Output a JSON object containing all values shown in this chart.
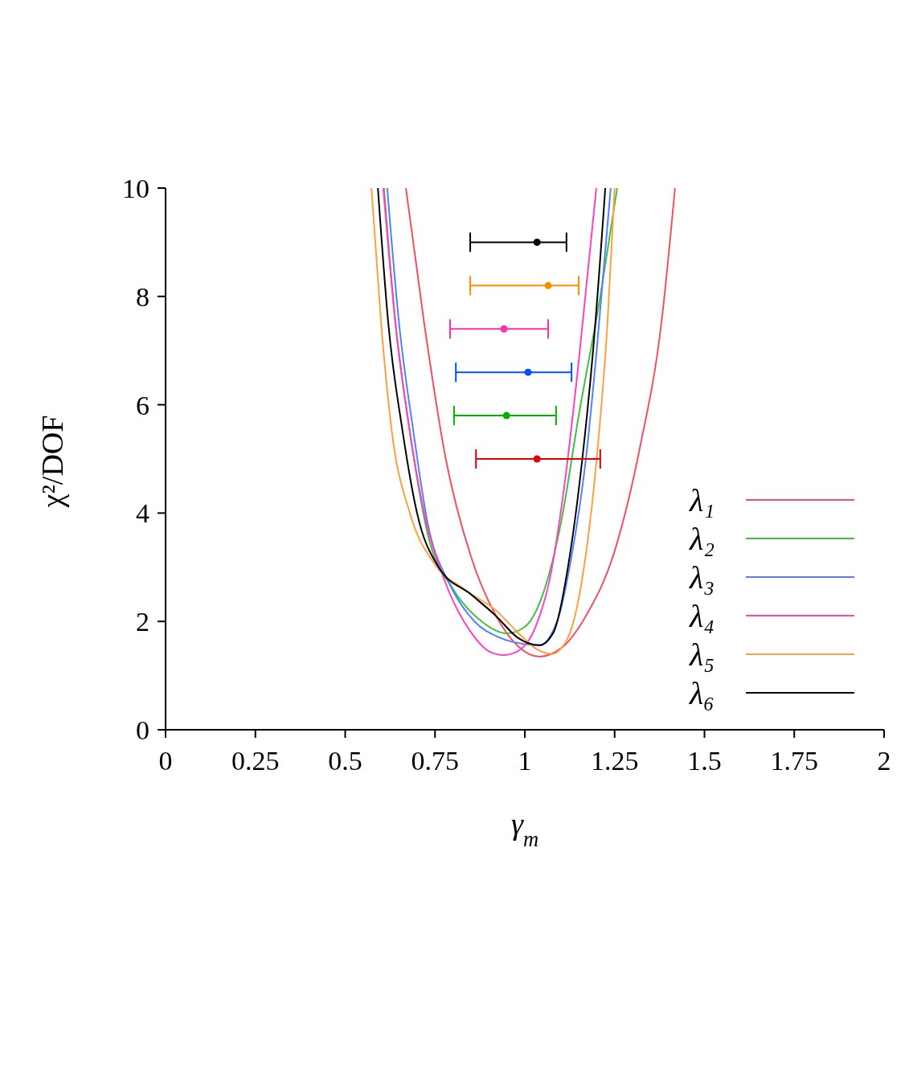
{
  "chart_data": {
    "type": "line",
    "xlabel": "γ$_{m}$",
    "ylabel": "χ²/DOF",
    "xlim": [
      0,
      2
    ],
    "xticks": [
      0,
      0.25,
      0.5,
      0.75,
      1,
      1.25,
      1.5,
      1.75,
      2
    ],
    "ylim": [
      0,
      10
    ],
    "yticks": [
      0,
      2,
      4,
      6,
      8,
      10
    ],
    "grid": false,
    "legend": "bottom right",
    "series": [
      {
        "name": "λ₁",
        "marker": "none",
        "color": "#f05060",
        "x": [
          0.669,
          0.72,
          0.78,
          0.85,
          0.92,
          0.98,
          1.04,
          1.1,
          1.17,
          1.25,
          1.32,
          1.38,
          1.418
        ],
        "values": [
          10,
          7.5,
          5,
          3.2,
          2.1,
          1.55,
          1.35,
          1.5,
          2.1,
          3.3,
          5.2,
          7.5,
          10
        ]
      },
      {
        "name": "λ₂",
        "marker": "none",
        "color": "#40c040",
        "x": [
          0.608,
          0.64,
          0.68,
          0.73,
          0.8,
          0.88,
          0.95,
          1.0,
          1.05,
          1.1,
          1.15,
          1.21,
          1.257
        ],
        "values": [
          10,
          7.5,
          5.5,
          3.6,
          2.6,
          2.0,
          1.78,
          1.9,
          2.5,
          3.8,
          5.8,
          8,
          10
        ]
      },
      {
        "name": "λ₃",
        "marker": "none",
        "color": "#5080ff",
        "x": [
          0.617,
          0.65,
          0.69,
          0.73,
          0.79,
          0.86,
          0.93,
          1.0,
          1.04,
          1.09,
          1.13,
          1.17,
          1.2,
          1.239
        ],
        "values": [
          10,
          7.5,
          5.5,
          3.8,
          2.7,
          2.0,
          1.7,
          1.58,
          1.56,
          2.0,
          3.2,
          5,
          7,
          10
        ]
      },
      {
        "name": "λ₄",
        "marker": "none",
        "color": "#ff40c0",
        "x": [
          0.606,
          0.64,
          0.68,
          0.72,
          0.78,
          0.85,
          0.9,
          0.94,
          0.98,
          1.03,
          1.07,
          1.11,
          1.15,
          1.199
        ],
        "values": [
          10,
          7.5,
          5.5,
          4,
          2.7,
          1.8,
          1.45,
          1.38,
          1.45,
          1.9,
          2.8,
          4.5,
          6.8,
          10
        ]
      },
      {
        "name": "λ₅",
        "marker": "none",
        "color": "#ffa040",
        "x": [
          0.573,
          0.6,
          0.63,
          0.68,
          0.75,
          0.83,
          0.92,
          0.98,
          1.03,
          1.076,
          1.12,
          1.16,
          1.2,
          1.23,
          1.25
        ],
        "values": [
          10,
          7.5,
          5.5,
          4,
          3.05,
          2.6,
          2.2,
          1.8,
          1.5,
          1.4,
          1.7,
          2.8,
          5,
          7.5,
          10
        ]
      },
      {
        "name": "λ₆",
        "marker": "none",
        "color": "#000000",
        "x": [
          0.591,
          0.62,
          0.66,
          0.7,
          0.76,
          0.85,
          0.92,
          0.98,
          1.04,
          1.08,
          1.12,
          1.16,
          1.19,
          1.224
        ],
        "values": [
          10,
          7.5,
          5.5,
          4,
          3,
          2.5,
          2.1,
          1.7,
          1.56,
          1.8,
          3,
          5,
          7,
          10
        ]
      },
      {
        "type": "scatter",
        "marker": "circle",
        "color": "#000000",
        "x": [
          1.034
        ],
        "values": [
          9
        ],
        "xerrors": [
          [
            0.848,
            1.116
          ]
        ]
      },
      {
        "type": "scatter",
        "marker": "circle",
        "color": "#ff8c00",
        "x": [
          1.065
        ],
        "values": [
          8.2
        ],
        "xerrors": [
          [
            0.848,
            1.15
          ]
        ]
      },
      {
        "type": "scatter",
        "marker": "circle",
        "color": "#ff2fa8",
        "x": [
          0.942
        ],
        "values": [
          7.4
        ],
        "xerrors": [
          [
            0.792,
            1.065
          ]
        ]
      },
      {
        "type": "scatter",
        "marker": "circle",
        "color": "#0050ff",
        "x": [
          1.009
        ],
        "values": [
          6.6
        ],
        "xerrors": [
          [
            0.808,
            1.13
          ]
        ]
      },
      {
        "type": "scatter",
        "marker": "circle",
        "color": "#00b000",
        "x": [
          0.949
        ],
        "values": [
          5.8
        ],
        "xerrors": [
          [
            0.803,
            1.087
          ]
        ]
      },
      {
        "type": "scatter",
        "marker": "circle",
        "color": "#e00000",
        "x": [
          1.034
        ],
        "values": [
          5.0
        ],
        "xerrors": [
          [
            0.864,
            1.21
          ]
        ]
      }
    ]
  }
}
